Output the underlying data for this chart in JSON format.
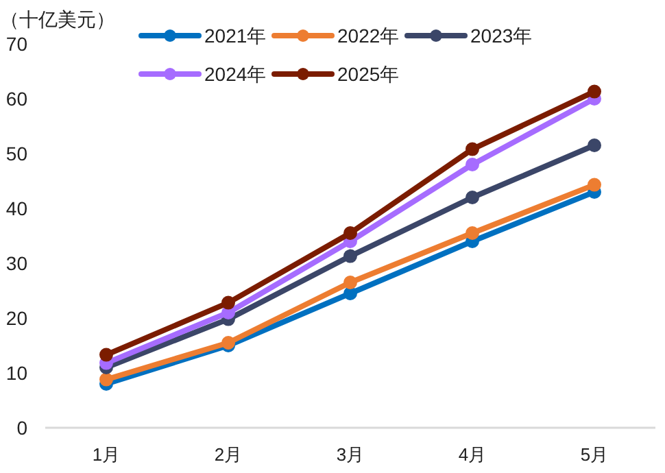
{
  "chart_data": {
    "type": "line",
    "ylabel": "（十亿美元）",
    "categories": [
      "1月",
      "2月",
      "3月",
      "4月",
      "5月"
    ],
    "ylim": [
      0,
      70
    ],
    "yticks": [
      0,
      10,
      20,
      30,
      40,
      50,
      60,
      70
    ],
    "grid": false,
    "legend": "top",
    "marker": "circle",
    "line_style": "solid",
    "series": [
      {
        "name": "2021年",
        "color": "#0070c0",
        "values": [
          8.0,
          15.0,
          24.5,
          34.0,
          43.0
        ]
      },
      {
        "name": "2022年",
        "color": "#ed7d31",
        "values": [
          8.8,
          15.5,
          26.5,
          35.5,
          44.3
        ]
      },
      {
        "name": "2023年",
        "color": "#3b4668",
        "values": [
          11.0,
          19.8,
          31.3,
          42.0,
          51.5
        ]
      },
      {
        "name": "2024年",
        "color": "#a66cff",
        "values": [
          11.8,
          21.0,
          34.0,
          48.0,
          60.0
        ]
      },
      {
        "name": "2025年",
        "color": "#7b1c00",
        "values": [
          13.3,
          22.8,
          35.5,
          50.8,
          61.3
        ]
      }
    ]
  }
}
